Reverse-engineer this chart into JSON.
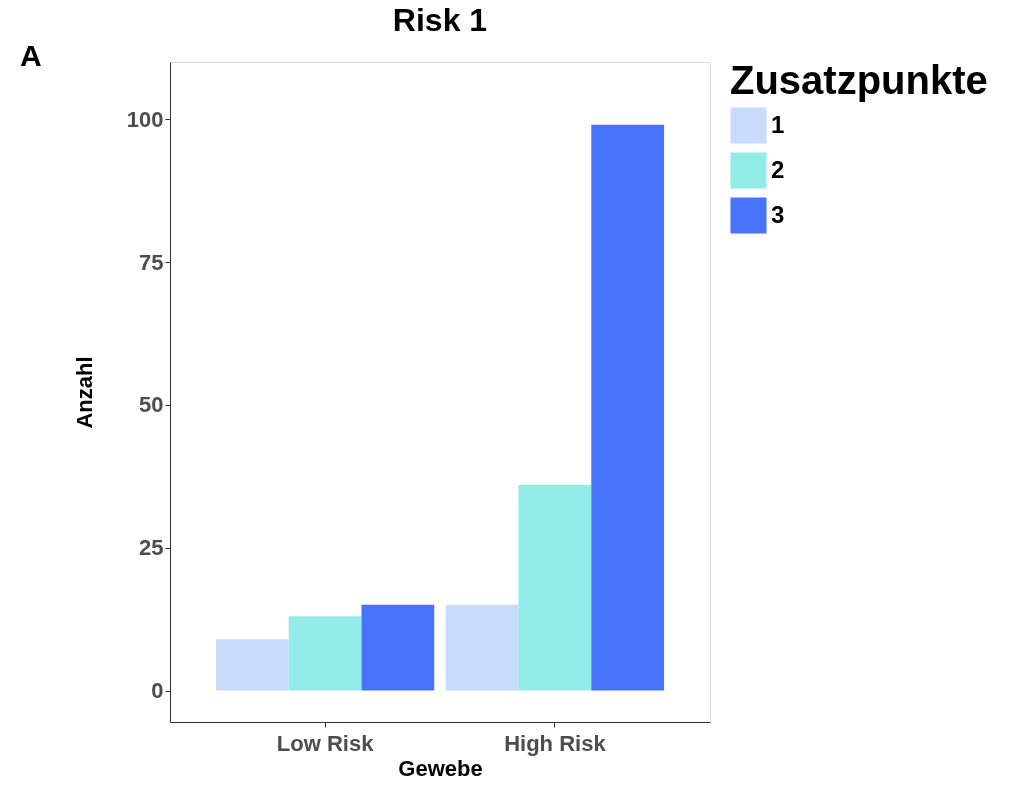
{
  "chart_data": {
    "type": "bar",
    "title": "Risk 1",
    "xlabel": "Gewebe",
    "ylabel": "Anzahl",
    "legend_title": "Zusatzpunkte",
    "categories": [
      "Low Risk",
      "High Risk"
    ],
    "series": [
      {
        "name": "1",
        "color": "#c6dcfa",
        "values": [
          9,
          15
        ]
      },
      {
        "name": "2",
        "color": "#92ede9",
        "values": [
          13,
          36
        ]
      },
      {
        "name": "3",
        "color": "#4874fb",
        "values": [
          15,
          99
        ]
      }
    ],
    "ylim": [
      -5.5,
      110
    ],
    "yticks": [
      0,
      25,
      50,
      75,
      100
    ],
    "grid": false,
    "legend": "right",
    "annotations": [
      "A"
    ]
  }
}
